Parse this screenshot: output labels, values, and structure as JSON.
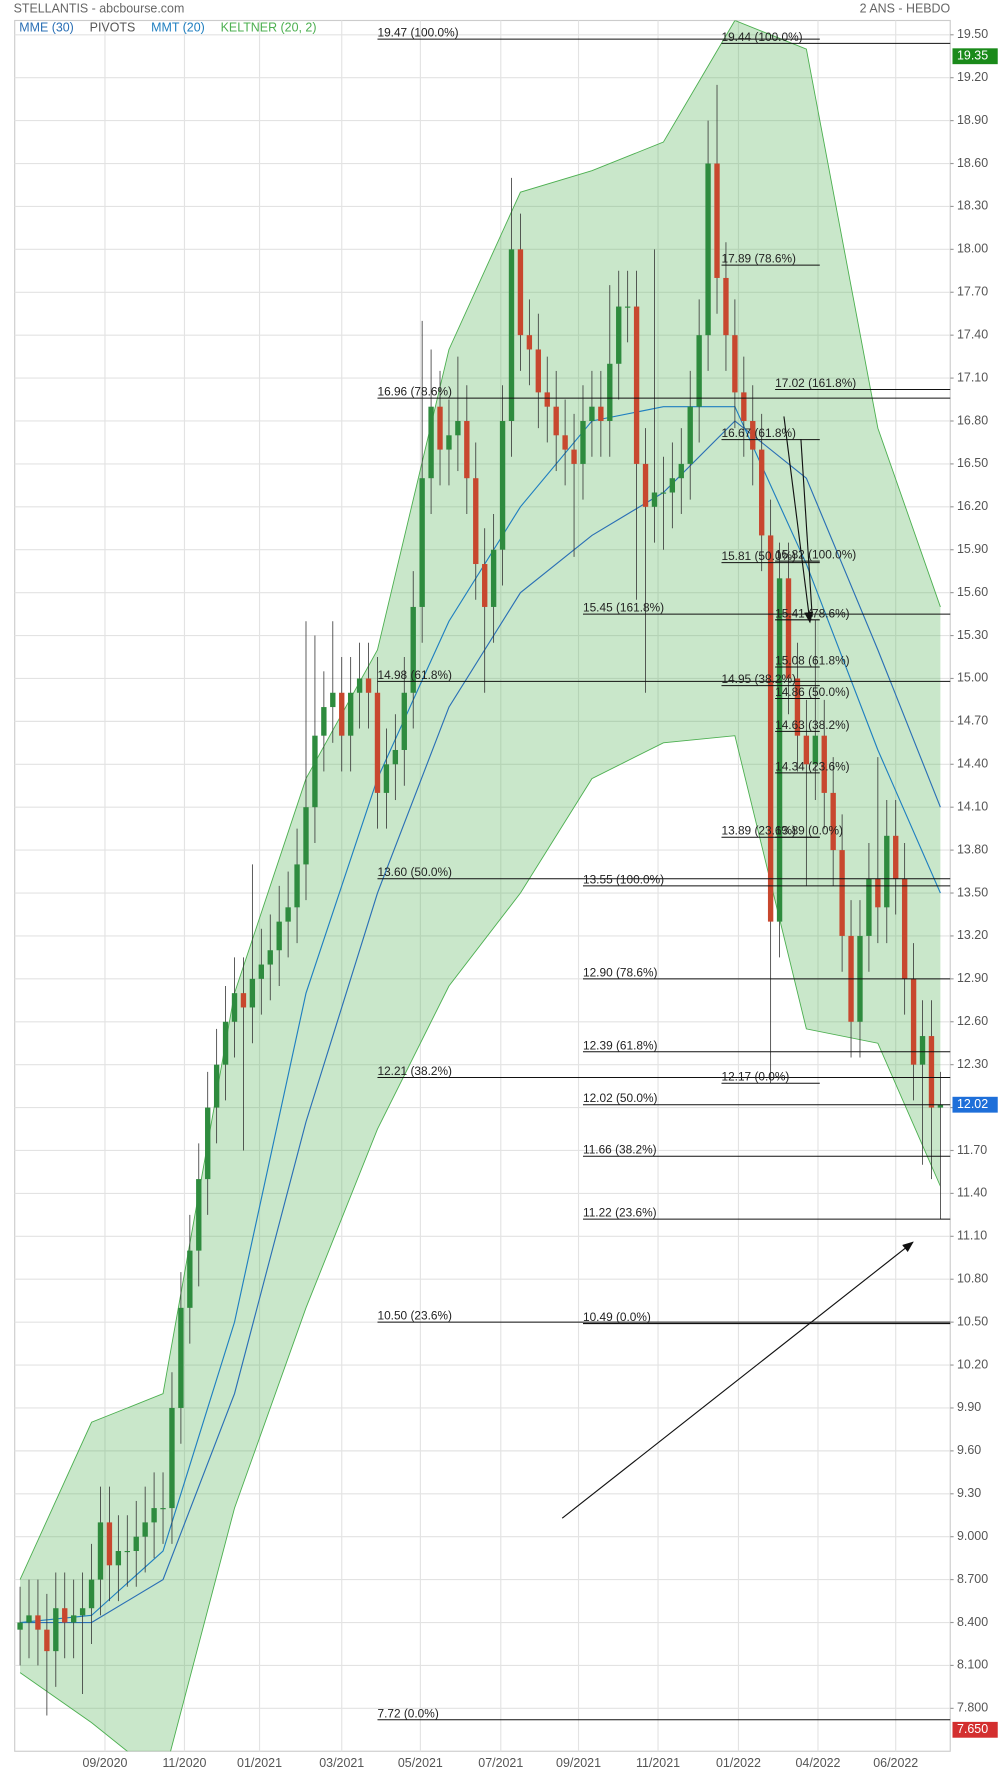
{
  "chart_data": {
    "type": "candlestick",
    "title": "STELLANTIS - abcbourse.com",
    "subtitle": "2 ANS - HEBDO",
    "xlim": [
      -0.6,
      104.1
    ],
    "ylim": [
      7.5,
      19.6
    ],
    "grid": true,
    "xticks": [
      {
        "value": 9.5,
        "label": "09/2020"
      },
      {
        "value": 18.4,
        "label": "11/2020"
      },
      {
        "value": 26.8,
        "label": "01/2021"
      },
      {
        "value": 36,
        "label": "03/2021"
      },
      {
        "value": 44.8,
        "label": "05/2021"
      },
      {
        "value": 53.8,
        "label": "07/2021"
      },
      {
        "value": 62.5,
        "label": "09/2021"
      },
      {
        "value": 71.4,
        "label": "11/2021"
      },
      {
        "value": 80.4,
        "label": "01/2022"
      },
      {
        "value": 89.3,
        "label": "04/2022"
      },
      {
        "value": 98,
        "label": "06/2022"
      }
    ],
    "yticks": [
      {
        "value": 19.5,
        "label": "19.50"
      },
      {
        "value": 19.2,
        "label": "19.20"
      },
      {
        "value": 18.9,
        "label": "18.90"
      },
      {
        "value": 18.6,
        "label": "18.60"
      },
      {
        "value": 18.3,
        "label": "18.30"
      },
      {
        "value": 18.0,
        "label": "18.00"
      },
      {
        "value": 17.7,
        "label": "17.70"
      },
      {
        "value": 17.4,
        "label": "17.40"
      },
      {
        "value": 17.1,
        "label": "17.10"
      },
      {
        "value": 16.8,
        "label": "16.80"
      },
      {
        "value": 16.5,
        "label": "16.50"
      },
      {
        "value": 16.2,
        "label": "16.20"
      },
      {
        "value": 15.9,
        "label": "15.90"
      },
      {
        "value": 15.6,
        "label": "15.60"
      },
      {
        "value": 15.3,
        "label": "15.30"
      },
      {
        "value": 15.0,
        "label": "15.00"
      },
      {
        "value": 14.7,
        "label": "14.70"
      },
      {
        "value": 14.4,
        "label": "14.40"
      },
      {
        "value": 14.1,
        "label": "14.10"
      },
      {
        "value": 13.8,
        "label": "13.80"
      },
      {
        "value": 13.5,
        "label": "13.50"
      },
      {
        "value": 13.2,
        "label": "13.20"
      },
      {
        "value": 12.9,
        "label": "12.90"
      },
      {
        "value": 12.6,
        "label": "12.60"
      },
      {
        "value": 12.3,
        "label": "12.30"
      },
      {
        "value": 12.0,
        "label": "12.00"
      },
      {
        "value": 11.7,
        "label": "11.70"
      },
      {
        "value": 11.4,
        "label": "11.40"
      },
      {
        "value": 11.1,
        "label": "11.10"
      },
      {
        "value": 10.8,
        "label": "10.80"
      },
      {
        "value": 10.5,
        "label": "10.50"
      },
      {
        "value": 10.2,
        "label": "10.20"
      },
      {
        "value": 9.9,
        "label": "9.90"
      },
      {
        "value": 9.6,
        "label": "9.60"
      },
      {
        "value": 9.3,
        "label": "9.30"
      },
      {
        "value": 9.0,
        "label": "9.000"
      },
      {
        "value": 8.7,
        "label": "8.700"
      },
      {
        "value": 8.4,
        "label": "8.400"
      },
      {
        "value": 8.1,
        "label": "8.100"
      },
      {
        "value": 7.8,
        "label": "7.800"
      }
    ],
    "candles": {
      "up_color": "#2e8b3e",
      "down_color": "#c8472e",
      "x": [
        0,
        1,
        2,
        3,
        4,
        5,
        6,
        7,
        8,
        9,
        10,
        11,
        12,
        13,
        14,
        15,
        16,
        17,
        18,
        19,
        20,
        21,
        22,
        23,
        24,
        25,
        26,
        27,
        28,
        29,
        30,
        31,
        32,
        33,
        34,
        35,
        36,
        37,
        38,
        39,
        40,
        41,
        42,
        43,
        44,
        45,
        46,
        47,
        48,
        49,
        50,
        51,
        52,
        53,
        54,
        55,
        56,
        57,
        58,
        59,
        60,
        61,
        62,
        63,
        64,
        65,
        66,
        67,
        68,
        69,
        70,
        71,
        72,
        73,
        74,
        75,
        76,
        77,
        78,
        79,
        80,
        81,
        82,
        83,
        84,
        85,
        86,
        87,
        88,
        89,
        90,
        91,
        92,
        93,
        94,
        95,
        96,
        97,
        98,
        99,
        100,
        101,
        102,
        103
      ],
      "open": [
        8.35,
        8.4,
        8.45,
        8.35,
        8.2,
        8.5,
        8.4,
        8.45,
        8.5,
        8.7,
        9.1,
        8.8,
        8.9,
        8.9,
        9.0,
        9.1,
        9.2,
        9.2,
        9.9,
        10.6,
        11.0,
        11.5,
        12.0,
        12.3,
        12.6,
        12.8,
        12.7,
        12.9,
        13.0,
        13.1,
        13.3,
        13.4,
        13.7,
        14.1,
        14.6,
        14.8,
        14.9,
        14.6,
        14.9,
        15.0,
        14.9,
        14.2,
        14.4,
        14.5,
        14.9,
        15.5,
        16.4,
        16.9,
        16.6,
        16.7,
        16.8,
        16.4,
        15.8,
        15.5,
        15.9,
        16.8,
        18.0,
        17.4,
        17.3,
        17.0,
        16.9,
        16.7,
        16.6,
        16.5,
        16.8,
        16.9,
        16.8,
        17.2,
        17.6,
        17.6,
        16.5,
        16.2,
        16.3,
        16.3,
        16.4,
        16.5,
        16.9,
        17.4,
        18.6,
        17.8,
        17.4,
        17.0,
        16.8,
        16.6,
        16.0,
        13.3,
        15.7,
        15.0,
        14.6,
        14.4,
        14.6,
        14.2,
        13.8,
        13.2,
        12.6,
        13.2,
        13.6,
        13.4,
        13.9,
        13.6,
        12.9,
        12.3,
        12.5,
        12.0
      ],
      "high": [
        8.65,
        8.7,
        8.7,
        8.6,
        8.75,
        8.75,
        8.7,
        8.75,
        8.95,
        9.35,
        9.35,
        9.15,
        9.15,
        9.25,
        9.35,
        9.45,
        9.45,
        10.15,
        10.85,
        11.25,
        11.75,
        12.25,
        12.55,
        12.85,
        13.05,
        13.05,
        13.7,
        13.25,
        13.35,
        13.55,
        13.65,
        13.95,
        15.4,
        15.3,
        15.05,
        15.4,
        15.15,
        15.15,
        15.25,
        15.25,
        15.15,
        14.65,
        14.75,
        15.15,
        15.75,
        17.5,
        17.3,
        17.15,
        16.95,
        17.25,
        17.05,
        16.65,
        16.05,
        16.15,
        17.05,
        18.5,
        18.25,
        17.65,
        17.55,
        17.25,
        17.15,
        16.95,
        16.85,
        17.05,
        17.15,
        17.15,
        17.75,
        17.85,
        17.85,
        17.85,
        16.75,
        18.0,
        16.55,
        16.65,
        16.75,
        17.15,
        17.65,
        18.9,
        19.15,
        18.05,
        17.65,
        17.25,
        17.05,
        16.85,
        16.25,
        15.95,
        15.95,
        15.25,
        14.85,
        15.41,
        14.85,
        14.45,
        14.05,
        13.45,
        13.45,
        13.85,
        14.45,
        14.15,
        14.15,
        13.85,
        13.15,
        12.75,
        12.75,
        12.25
      ],
      "low": [
        8.1,
        8.15,
        8.1,
        7.75,
        7.95,
        8.15,
        8.15,
        7.9,
        8.25,
        8.45,
        8.55,
        8.55,
        8.65,
        8.65,
        8.75,
        8.85,
        8.95,
        8.95,
        9.65,
        10.35,
        10.75,
        11.25,
        11.75,
        12.05,
        12.35,
        11.7,
        12.45,
        12.65,
        12.75,
        12.85,
        13.05,
        13.15,
        13.45,
        13.85,
        14.35,
        14.55,
        14.35,
        14.35,
        14.65,
        14.65,
        13.95,
        13.95,
        14.15,
        14.25,
        14.65,
        15.25,
        16.15,
        16.35,
        16.35,
        16.45,
        16.15,
        15.55,
        14.9,
        15.25,
        15.65,
        16.55,
        17.15,
        17.05,
        16.75,
        16.65,
        16.45,
        16.35,
        15.85,
        16.25,
        16.55,
        16.55,
        16.55,
        16.95,
        17.35,
        15.55,
        14.9,
        15.95,
        15.9,
        16.05,
        16.15,
        16.25,
        16.65,
        17.15,
        17.55,
        17.15,
        16.75,
        16.55,
        16.35,
        15.75,
        12.17,
        13.05,
        14.75,
        14.35,
        13.55,
        14.15,
        13.95,
        13.55,
        12.95,
        12.35,
        12.35,
        12.95,
        13.15,
        13.15,
        13.35,
        12.65,
        12.05,
        11.6,
        11.5,
        11.22
      ],
      "close": [
        8.4,
        8.45,
        8.35,
        8.2,
        8.5,
        8.4,
        8.45,
        8.5,
        8.7,
        9.1,
        8.8,
        8.9,
        8.9,
        9.0,
        9.1,
        9.2,
        9.2,
        9.9,
        10.6,
        11.0,
        11.5,
        12.0,
        12.3,
        12.6,
        12.8,
        12.7,
        12.9,
        13.0,
        13.1,
        13.3,
        13.4,
        13.7,
        14.1,
        14.6,
        14.8,
        14.9,
        14.6,
        14.9,
        15.0,
        14.9,
        14.2,
        14.4,
        14.5,
        14.9,
        15.5,
        16.4,
        16.9,
        16.6,
        16.7,
        16.8,
        16.4,
        15.8,
        15.5,
        15.9,
        16.8,
        18.0,
        17.4,
        17.3,
        17.0,
        16.9,
        16.7,
        16.6,
        16.5,
        16.8,
        16.9,
        16.8,
        17.2,
        17.6,
        17.6,
        16.5,
        16.2,
        16.3,
        16.3,
        16.4,
        16.5,
        16.9,
        17.4,
        18.6,
        17.8,
        17.4,
        17.0,
        16.8,
        16.6,
        16.0,
        13.3,
        15.7,
        15.0,
        14.6,
        14.4,
        14.6,
        14.2,
        13.8,
        13.2,
        12.6,
        13.2,
        13.6,
        13.4,
        13.9,
        13.6,
        12.9,
        12.3,
        12.5,
        12.0,
        12.02
      ]
    },
    "keltner": {
      "name": "KELTNER (20, 2)",
      "color": "#4caf50",
      "x": [
        0,
        8,
        16,
        24,
        32,
        40,
        48,
        56,
        64,
        72,
        80,
        88,
        96,
        103
      ],
      "upper": [
        8.7,
        9.8,
        10.0,
        12.8,
        14.3,
        15.2,
        17.3,
        18.4,
        18.55,
        18.75,
        19.6,
        19.4,
        16.75,
        15.5
      ],
      "lower": [
        8.05,
        7.7,
        7.3,
        9.2,
        10.6,
        11.85,
        12.85,
        13.5,
        14.3,
        14.55,
        14.6,
        12.55,
        12.45,
        11.45
      ]
    },
    "series": [
      {
        "name": "MME (30)",
        "color": "#2a6fb5",
        "x": [
          0,
          8,
          16,
          24,
          32,
          40,
          48,
          56,
          64,
          72,
          80,
          88,
          96,
          103
        ],
        "values": [
          8.4,
          8.4,
          8.7,
          10.0,
          11.9,
          13.5,
          14.8,
          15.6,
          16.0,
          16.3,
          16.8,
          16.4,
          15.2,
          14.1
        ]
      },
      {
        "name": "MMT (20)",
        "color": "#1f7fc0",
        "x": [
          0,
          8,
          16,
          24,
          32,
          40,
          48,
          56,
          64,
          72,
          80,
          88,
          96,
          103
        ],
        "values": [
          8.4,
          8.45,
          8.9,
          10.5,
          12.8,
          14.3,
          15.4,
          16.2,
          16.8,
          16.9,
          16.9,
          15.8,
          14.5,
          13.5
        ]
      }
    ],
    "pivots": {
      "name": "PIVOTS",
      "color": "#555555",
      "levels": [
        {
          "value": 19.47,
          "label": "19.47  (100.0%)",
          "x": [
            40,
            89.5
          ]
        },
        {
          "value": 19.44,
          "label": "19.44  (100.0%)",
          "x": [
            78.5,
            104.1
          ]
        },
        {
          "value": 17.89,
          "label": "17.89  (78.6%)",
          "x": [
            78.5,
            89.5
          ]
        },
        {
          "value": 17.02,
          "label": "17.02  (161.8%)",
          "x": [
            84.5,
            104.1
          ]
        },
        {
          "value": 16.96,
          "label": "16.96  (78.6%)",
          "x": [
            40,
            104.1
          ]
        },
        {
          "value": 16.67,
          "label": "16.67  (61.8%)",
          "x": [
            78.5,
            89.5
          ]
        },
        {
          "value": 15.81,
          "label": "15.81  (50.0%)",
          "x": [
            78.5,
            89.5
          ]
        },
        {
          "value": 15.82,
          "label": "15.82  (100.0%)",
          "x": [
            84.5,
            89.5
          ]
        },
        {
          "value": 15.45,
          "label": "15.45  (161.8%)",
          "x": [
            63,
            104.1
          ]
        },
        {
          "value": 15.41,
          "label": "15.41  (78.6%)",
          "x": [
            84.5,
            89.5
          ]
        },
        {
          "value": 15.08,
          "label": "15.08  (61.8%)",
          "x": [
            84.5,
            89.5
          ]
        },
        {
          "value": 14.98,
          "label": "14.98  (61.8%)",
          "x": [
            40,
            104.1
          ]
        },
        {
          "value": 14.95,
          "label": "14.95  (38.2%)",
          "x": [
            78.5,
            89.5
          ]
        },
        {
          "value": 14.86,
          "label": "14.86  (50.0%)",
          "x": [
            84.5,
            89.5
          ]
        },
        {
          "value": 14.63,
          "label": "14.63  (38.2%)",
          "x": [
            84.5,
            89.5
          ]
        },
        {
          "value": 14.34,
          "label": "14.34  (23.6%)",
          "x": [
            84.5,
            89.5
          ]
        },
        {
          "value": 13.89,
          "label": "13.89  (23.6%)",
          "x": [
            78.5,
            89.5
          ]
        },
        {
          "value": 13.89,
          "label": "13.89  (0.0%)",
          "x": [
            84.5,
            89.5
          ]
        },
        {
          "value": 13.6,
          "label": "13.60  (50.0%)",
          "x": [
            40,
            104.1
          ]
        },
        {
          "value": 13.55,
          "label": "13.55  (100.0%)",
          "x": [
            63,
            104.1
          ]
        },
        {
          "value": 12.9,
          "label": "12.90  (78.6%)",
          "x": [
            63,
            104.1
          ]
        },
        {
          "value": 12.39,
          "label": "12.39  (61.8%)",
          "x": [
            63,
            104.1
          ]
        },
        {
          "value": 12.21,
          "label": "12.21  (38.2%)",
          "x": [
            40,
            104.1
          ]
        },
        {
          "value": 12.17,
          "label": "12.17  (0.0%)",
          "x": [
            78.5,
            89.5
          ]
        },
        {
          "value": 12.02,
          "label": "12.02  (50.0%)",
          "x": [
            63,
            104.1
          ]
        },
        {
          "value": 11.66,
          "label": "11.66  (38.2%)",
          "x": [
            63,
            104.1
          ]
        },
        {
          "value": 11.22,
          "label": "11.22  (23.6%)",
          "x": [
            63,
            104.1
          ]
        },
        {
          "value": 10.5,
          "label": "10.50  (23.6%)",
          "x": [
            40,
            104.1
          ]
        },
        {
          "value": 10.49,
          "label": "10.49  (0.0%)",
          "x": [
            63,
            104.1
          ]
        },
        {
          "value": 7.72,
          "label": "7.72  (0.0%)",
          "x": [
            40,
            104.1
          ]
        }
      ]
    },
    "price_tags": [
      {
        "value": 19.35,
        "label": "19.35",
        "color": "#1a8a1a"
      },
      {
        "value": 12.02,
        "label": "12.02",
        "color": "#1e6fd9"
      },
      {
        "value": 7.65,
        "label": "7.650",
        "color": "#d32f2f"
      }
    ]
  }
}
